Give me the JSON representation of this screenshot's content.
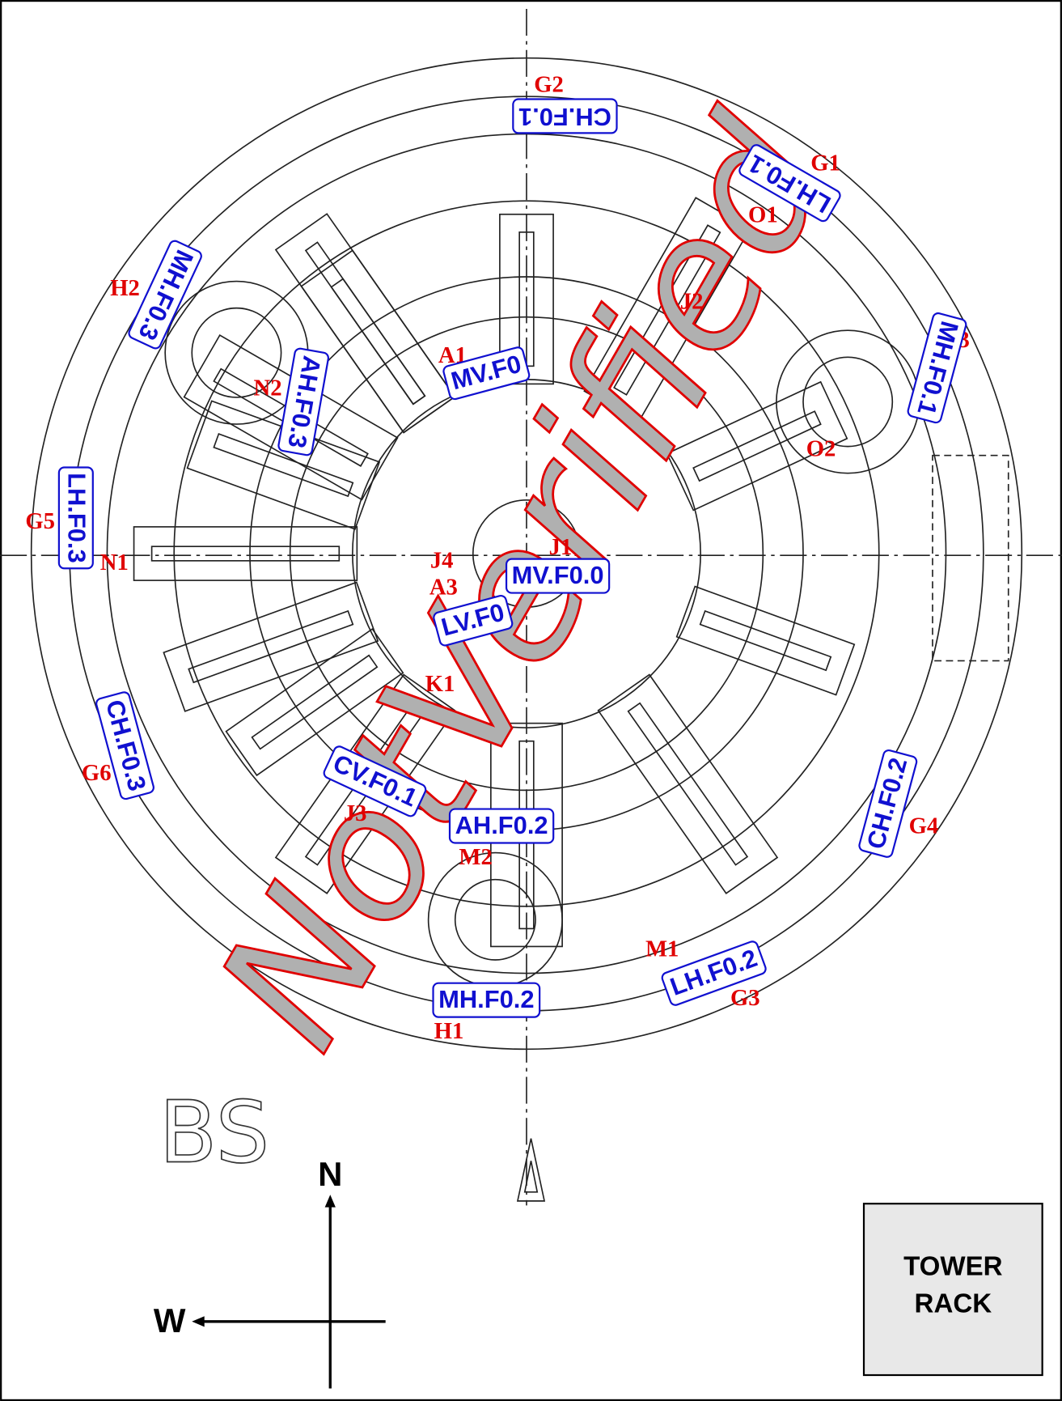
{
  "position_labels": [
    "G2",
    "G1",
    "O1",
    "H2",
    "J2",
    "H3",
    "A1",
    "N2",
    "O2",
    "G5",
    "N1",
    "J4",
    "A3",
    "J1",
    "K1",
    "G6",
    "J3",
    "M2",
    "G4",
    "M1",
    "G3",
    "H1"
  ],
  "fixture_tags": [
    "CH.F0.1",
    "LH.F0.1",
    "MH.F0.3",
    "MH.F0.1",
    "AH.F0.3",
    "MV.F0",
    "LH.F0.3",
    "MV.F0.0",
    "LV.F0",
    "CH.F0.3",
    "CV.F0.1",
    "AH.F0.2",
    "CH.F0.2",
    "LH.F0.2",
    "MH.F0.2"
  ],
  "drawing_mark": "BS",
  "watermark": "NotVerified",
  "compass": {
    "north": "N",
    "west": "W"
  },
  "tower_rack": [
    "TOWER",
    "RACK"
  ]
}
